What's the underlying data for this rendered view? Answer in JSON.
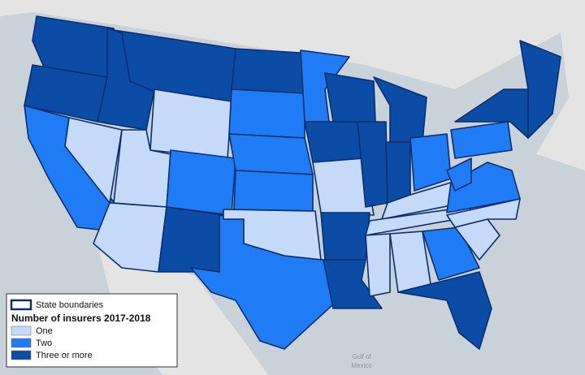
{
  "legend": {
    "boundary_label": "State boundaries",
    "title": "Number of insurers 2017-2018",
    "items": [
      {
        "label": "One",
        "color": "#c5d9f8"
      },
      {
        "label": "Two",
        "color": "#1f7cf5"
      },
      {
        "label": "Three or more",
        "color": "#0b4da6"
      }
    ]
  },
  "sea_label": [
    "Gulf of",
    "Mexico"
  ]
}
